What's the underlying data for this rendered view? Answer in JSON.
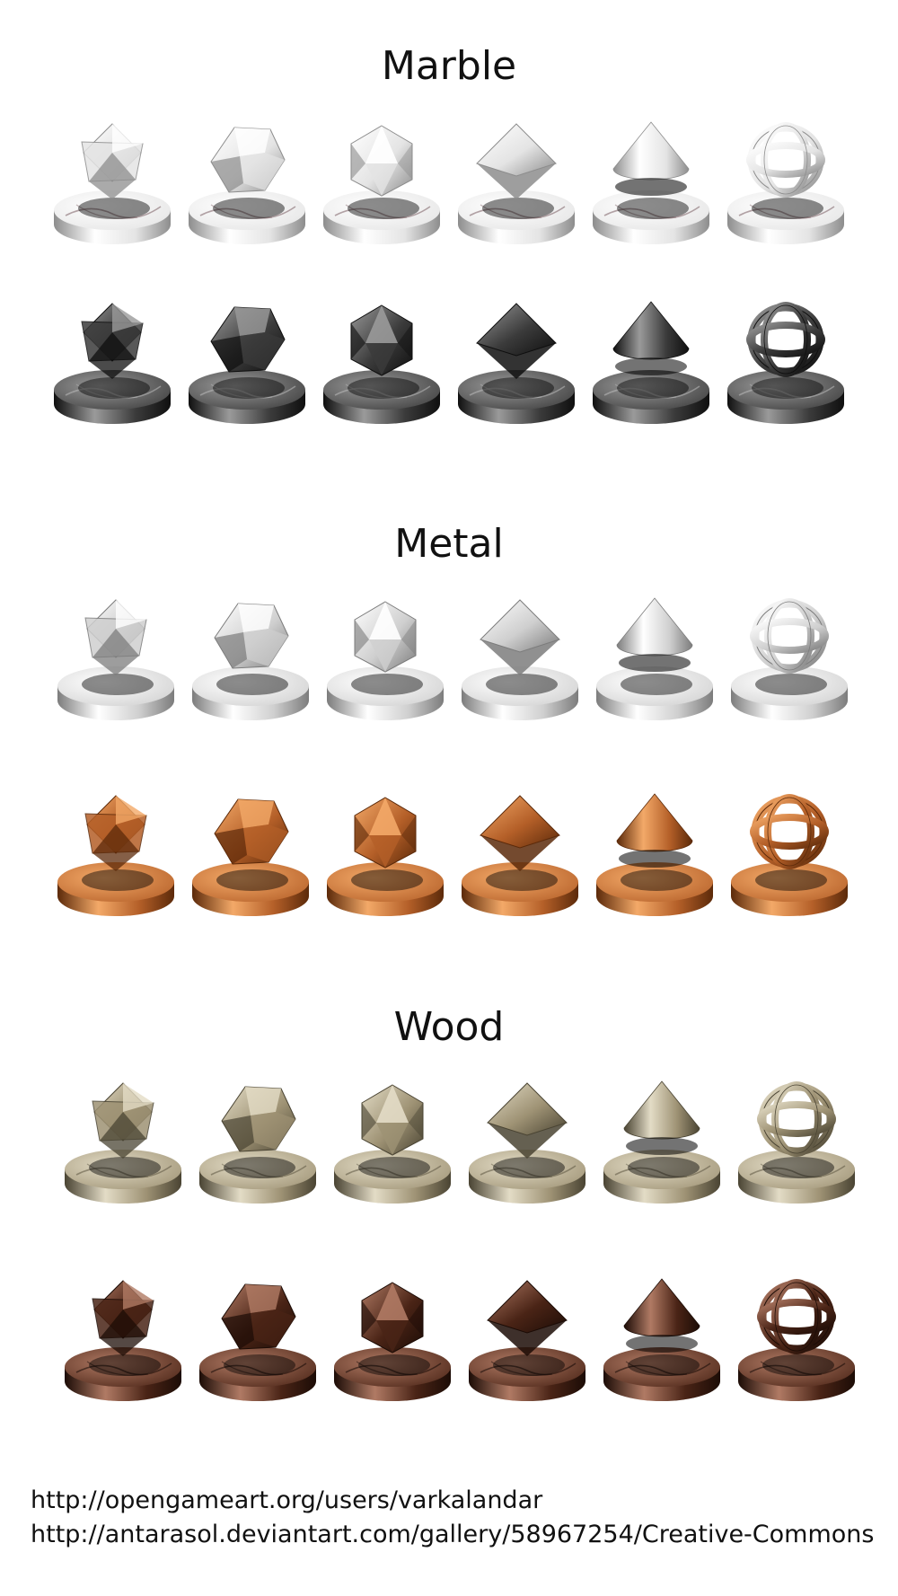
{
  "sections": [
    {
      "title": "Marble",
      "rows": [
        {
          "material": "white-marble",
          "base": "#e4e4e4",
          "light": "#ffffff",
          "dark": "#8d8d8d",
          "vein": "#7a5d62"
        },
        {
          "material": "black-marble",
          "base": "#3b3b3b",
          "light": "#9a9a9a",
          "dark": "#0f0f0f",
          "vein": "#bdbdbd"
        }
      ]
    },
    {
      "title": "Metal",
      "rows": [
        {
          "material": "silver",
          "base": "#cfcfcf",
          "light": "#ffffff",
          "dark": "#7c7c7c",
          "vein": ""
        },
        {
          "material": "copper",
          "base": "#b45f28",
          "light": "#f3a968",
          "dark": "#5c2a0a",
          "vein": ""
        }
      ]
    },
    {
      "title": "Wood",
      "rows": [
        {
          "material": "light-wood",
          "base": "#9e9274",
          "light": "#e3dcc6",
          "dark": "#4a4433",
          "vein": "#5b5440"
        },
        {
          "material": "dark-wood",
          "base": "#4a2416",
          "light": "#b07a64",
          "dark": "#1c0c06",
          "vein": "#120704"
        }
      ]
    }
  ],
  "shapes": [
    "stellated-octahedron-icon",
    "dodecahedron-icon",
    "icosahedron-icon",
    "octahedron-icon",
    "cone-icon",
    "torus-knot-icon"
  ],
  "credits": [
    "http://opengameart.org/users/varkalandar",
    "http://antarasol.deviantart.com/gallery/58967254/Creative-Commons"
  ]
}
